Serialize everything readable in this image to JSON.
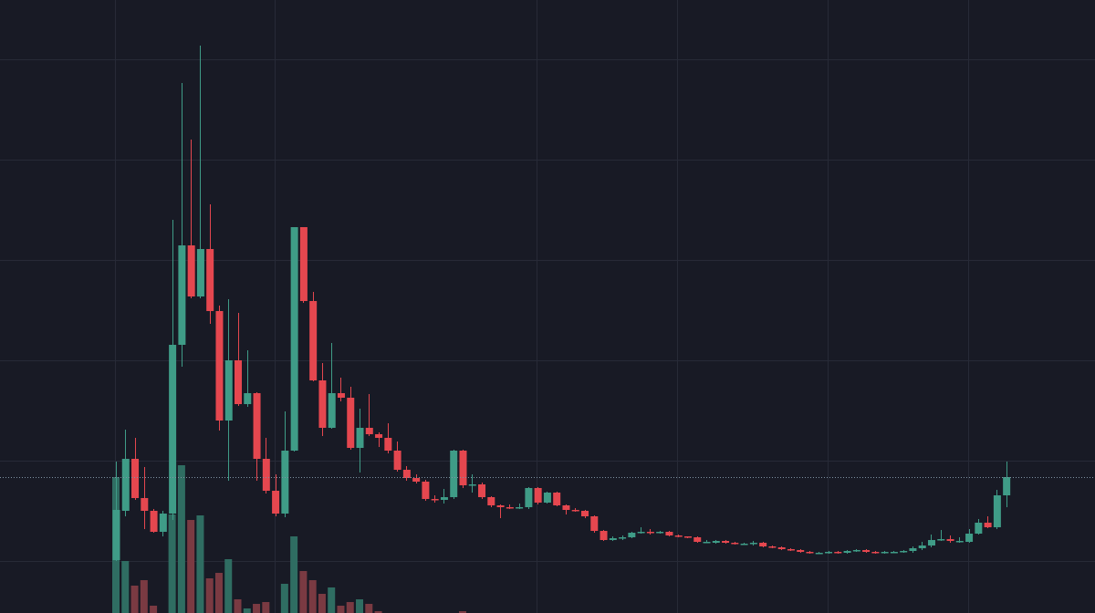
{
  "chart_data": {
    "type": "candlestick",
    "open": [
      1,
      55,
      112,
      69,
      55,
      32,
      52,
      237,
      346,
      290,
      342,
      274,
      154,
      220,
      172,
      184,
      112,
      77,
      52,
      121,
      366,
      285,
      198,
      146,
      184,
      179,
      124,
      146,
      139,
      135,
      121,
      100,
      91,
      87,
      68,
      67,
      70,
      121,
      83,
      84,
      70,
      61,
      59,
      58,
      59,
      80,
      64,
      75,
      61,
      56,
      55,
      49,
      33,
      23,
      25,
      26,
      31,
      32,
      31,
      32,
      28,
      27,
      26,
      21,
      20,
      22,
      20,
      19,
      19,
      20,
      16,
      15,
      13,
      12,
      10,
      9,
      9,
      10,
      9,
      11,
      12,
      10,
      9,
      10,
      10,
      11,
      14,
      17,
      23,
      24,
      22,
      21,
      30,
      42,
      37,
      72
    ],
    "high": [
      109,
      144,
      135,
      103,
      57,
      55,
      374,
      524,
      462,
      565,
      391,
      280,
      287,
      272,
      231,
      185,
      135,
      95,
      164,
      366,
      366,
      295,
      217,
      239,
      201,
      191,
      167,
      183,
      141,
      151,
      131,
      104,
      95,
      89,
      72,
      79,
      122,
      122,
      95,
      86,
      71,
      62,
      62,
      63,
      81,
      81,
      76,
      76,
      62,
      58,
      56,
      50,
      34,
      27,
      28,
      32,
      37,
      35,
      33,
      33,
      29,
      27,
      27,
      23,
      23,
      23,
      21,
      20,
      22,
      21,
      17,
      16,
      14,
      13,
      11,
      10,
      11,
      11,
      12,
      13,
      13,
      11,
      11,
      11,
      12,
      16,
      21,
      29,
      34,
      28,
      26,
      35,
      46,
      49,
      78,
      109
    ],
    "low": [
      0,
      49,
      67,
      35,
      31,
      27,
      45,
      213,
      288,
      288,
      260,
      143,
      88,
      170,
      169,
      88,
      74,
      49,
      48,
      120,
      283,
      197,
      137,
      145,
      175,
      122,
      97,
      137,
      125,
      118,
      98,
      88,
      85,
      66,
      64,
      63,
      68,
      80,
      75,
      68,
      59,
      47,
      57,
      57,
      57,
      62,
      63,
      60,
      51,
      54,
      47,
      31,
      22,
      22,
      23,
      25,
      30,
      29,
      30,
      27,
      26,
      25,
      20,
      20,
      19,
      19,
      18,
      18,
      17,
      15,
      14,
      12,
      11,
      9,
      8,
      8,
      8,
      8,
      8,
      10,
      9,
      8,
      8,
      9,
      9,
      9,
      12,
      15,
      22,
      20,
      20,
      20,
      29,
      36,
      35,
      59
    ],
    "close": [
      56,
      112,
      69,
      55,
      32,
      52,
      237,
      346,
      290,
      342,
      274,
      154,
      220,
      172,
      184,
      112,
      77,
      52,
      121,
      366,
      285,
      198,
      146,
      184,
      179,
      124,
      146,
      139,
      135,
      121,
      100,
      91,
      87,
      68,
      67,
      70,
      121,
      83,
      84,
      70,
      61,
      59,
      58,
      59,
      80,
      64,
      75,
      61,
      56,
      55,
      49,
      33,
      23,
      25,
      26,
      31,
      32,
      31,
      32,
      28,
      27,
      26,
      21,
      21,
      22,
      20,
      19,
      19,
      20,
      16,
      15,
      13,
      12,
      10,
      9,
      9,
      10,
      9,
      11,
      12,
      10,
      9,
      10,
      10,
      11,
      14,
      17,
      23,
      24,
      22,
      22,
      30,
      42,
      37,
      72,
      92
    ],
    "volume": [
      149,
      57,
      30,
      36,
      8,
      0,
      108,
      162,
      102,
      107,
      38,
      44,
      59,
      15,
      5,
      10,
      12,
      0,
      32,
      84,
      46,
      36,
      21,
      28,
      8,
      12,
      15,
      10,
      2,
      0,
      0,
      0,
      0,
      0,
      0,
      0,
      0,
      2,
      0,
      0,
      0,
      0,
      0,
      0,
      0,
      0,
      0,
      0,
      0,
      0,
      0,
      0,
      0,
      0,
      0,
      0,
      0,
      0,
      0,
      0,
      0,
      0,
      0,
      0,
      0,
      0,
      0,
      0,
      0,
      0,
      0,
      0,
      0,
      0,
      0,
      0,
      0,
      0,
      0,
      0,
      0,
      0,
      0,
      0,
      0,
      0,
      0,
      0,
      0,
      0,
      0,
      0,
      0,
      0,
      0,
      0
    ],
    "up_color": "#3f9c87",
    "down_color": "#e5474f",
    "volume_up_color": "#2f6d62",
    "volume_down_color": "#7a3a42",
    "ylim": [
      -57,
      615
    ],
    "yticks": [
      0,
      110,
      220,
      330,
      440,
      550
    ],
    "y2lim": [
      0,
      672
    ],
    "xgrid": [
      0,
      17,
      45,
      60,
      76,
      91
    ],
    "grid": true,
    "last_price_line": true
  }
}
